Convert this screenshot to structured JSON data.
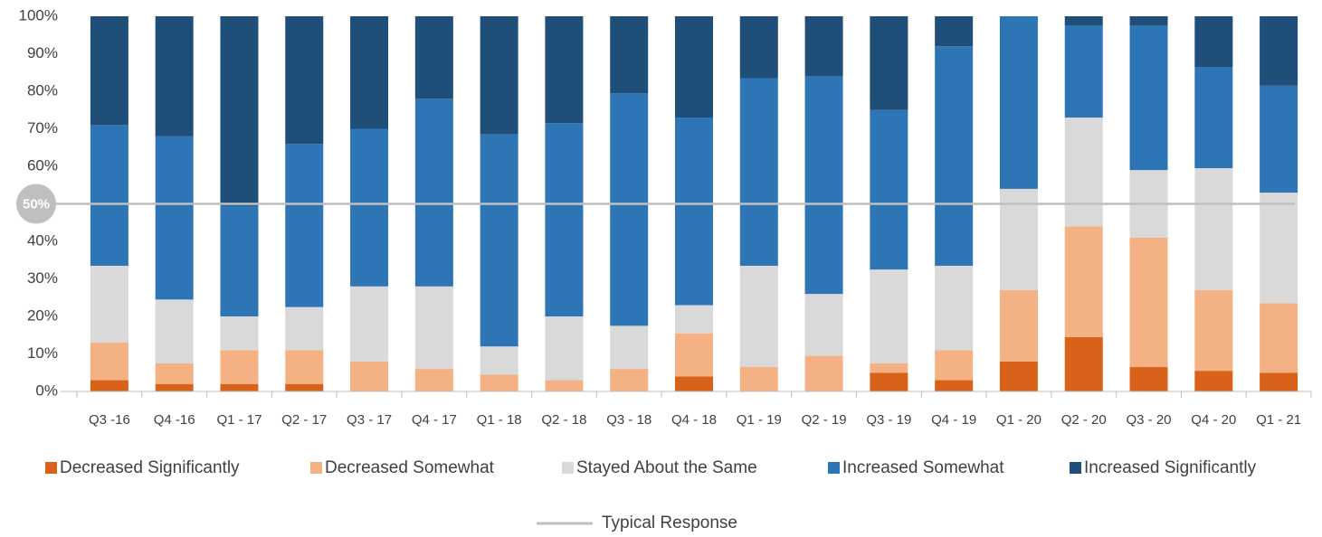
{
  "chart_data": {
    "type": "stacked_bar",
    "categories": [
      "Q3 -16",
      "Q4 -16",
      "Q1 - 17",
      "Q2 - 17",
      "Q3 - 17",
      "Q4 - 17",
      "Q1 - 18",
      "Q2 - 18",
      "Q3 - 18",
      "Q4 - 18",
      "Q1 - 19",
      "Q2 - 19",
      "Q3 - 19",
      "Q4 - 19",
      "Q1 - 20",
      "Q2 - 20",
      "Q3 - 20",
      "Q4 - 20",
      "Q1 - 21"
    ],
    "series": [
      {
        "name": "Decreased Significantly",
        "color": "#d9621a",
        "values": [
          3,
          2,
          2,
          2,
          0,
          0,
          0,
          0,
          0,
          4,
          0,
          0,
          5,
          3,
          8,
          14.5,
          6.5,
          5.5,
          5
        ]
      },
      {
        "name": "Decreased Somewhat",
        "color": "#f4b183",
        "values": [
          10,
          5.5,
          9,
          9,
          8,
          6,
          4.5,
          3,
          6,
          11.5,
          6.5,
          9.5,
          2.5,
          8,
          19,
          29.5,
          34.5,
          21.5,
          18.5
        ]
      },
      {
        "name": "Stayed About the Same",
        "color": "#d9d9d9",
        "values": [
          20.5,
          17,
          9,
          11.5,
          20,
          22,
          7.5,
          17,
          11.5,
          7.5,
          27,
          16.5,
          25,
          22.5,
          27,
          29,
          18,
          32.5,
          29.5
        ]
      },
      {
        "name": "Increased Somewhat",
        "color": "#2e75b6",
        "values": [
          37.5,
          43.5,
          29.5,
          43.5,
          42,
          50,
          56.5,
          51.5,
          62,
          50,
          50,
          58,
          42.5,
          58.5,
          46,
          24.5,
          38.5,
          27,
          28.5
        ]
      },
      {
        "name": "Increased Significantly",
        "color": "#1f4e79",
        "values": [
          29,
          32,
          50.5,
          34,
          30,
          22,
          31.5,
          28.5,
          20.5,
          27,
          16.5,
          16,
          25,
          8,
          0,
          2.5,
          2.5,
          13.5,
          18.5
        ]
      }
    ],
    "reference_line": {
      "name": "Typical Response",
      "value": 50,
      "label": "50%",
      "color": "#bfbfbf"
    },
    "ylim": [
      0,
      100
    ],
    "yticks": [
      {
        "value": 0,
        "label": "0%"
      },
      {
        "value": 10,
        "label": "10%"
      },
      {
        "value": 20,
        "label": "20%"
      },
      {
        "value": 30,
        "label": "30%"
      },
      {
        "value": 40,
        "label": "40%"
      },
      {
        "value": 50,
        "label": "50%"
      },
      {
        "value": 60,
        "label": "60%"
      },
      {
        "value": 70,
        "label": "70%"
      },
      {
        "value": 80,
        "label": "80%"
      },
      {
        "value": 90,
        "label": "90%"
      },
      {
        "value": 100,
        "label": "100%"
      }
    ],
    "legend": "bottom"
  }
}
